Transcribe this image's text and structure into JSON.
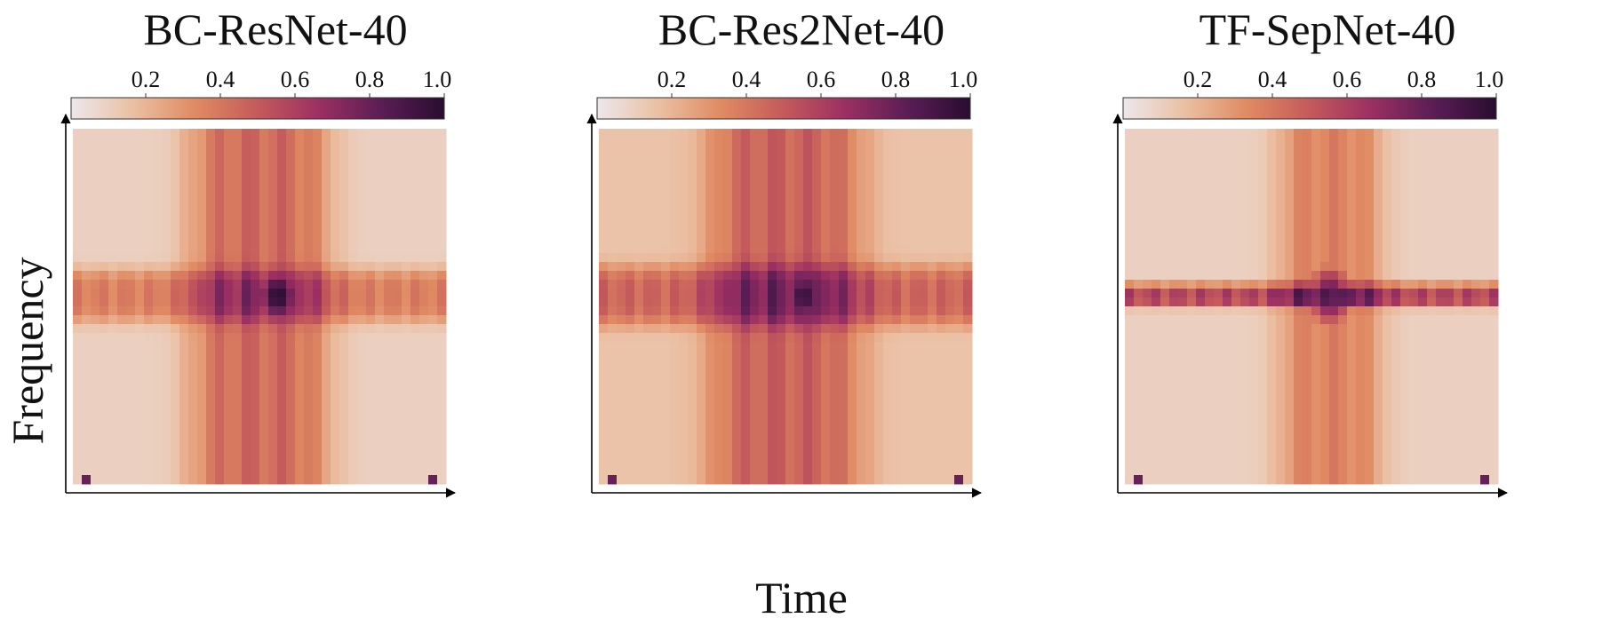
{
  "figure": {
    "ylabel": "Frequency",
    "xlabel": "Time"
  },
  "colorbar": {
    "colormap": "rocket_r",
    "range": [
      0.0,
      1.0
    ],
    "ticks": [
      "0.2",
      "0.4",
      "0.6",
      "0.8",
      "1.0"
    ],
    "tick_values": [
      0.2,
      0.4,
      0.6,
      0.8,
      1.0
    ],
    "colors": [
      "#ece7ec",
      "#ebbfa2",
      "#e08a62",
      "#c45a5b",
      "#9b2f62",
      "#5a1d55",
      "#2a0c30"
    ]
  },
  "chart_data": [
    {
      "type": "heatmap",
      "title": "BC-ResNet-40",
      "xlabel": "",
      "ylabel": "Frequency",
      "value_range": [
        0,
        1
      ],
      "pattern": "Vertical band of elevated relevance over the middle time region and horizontal band around the middle frequencies, with a strong maximum (~1.0) where they intersect; background ~0.1",
      "time_band": {
        "center": 0.5,
        "width": 0.4,
        "level": 0.4
      },
      "freq_band": {
        "center": 0.53,
        "width": 0.16,
        "level": 0.32
      },
      "peak": {
        "time": 0.55,
        "freq": 0.53,
        "level": 1.0
      }
    },
    {
      "type": "heatmap",
      "title": "BC-Res2Net-40",
      "xlabel": "Time",
      "ylabel": "",
      "value_range": [
        0,
        1
      ],
      "pattern": "Broad vertical band over the middle time region and horizontal band around the middle frequencies, with a maximum (~0.95) at the centre; background ~0.15",
      "time_band": {
        "center": 0.5,
        "width": 0.44,
        "level": 0.38
      },
      "freq_band": {
        "center": 0.53,
        "width": 0.18,
        "level": 0.36
      },
      "peak": {
        "time": 0.55,
        "freq": 0.53,
        "level": 0.95
      }
    },
    {
      "type": "heatmap",
      "title": "TF-SepNet-40",
      "xlabel": "",
      "ylabel": "",
      "value_range": [
        0,
        1
      ],
      "pattern": "Narrow sharp horizontal band at the middle frequencies and a weaker vertical band over the middle time region; maximum (~0.85) at the intersection; background ~0.1",
      "time_band": {
        "center": 0.55,
        "width": 0.3,
        "level": 0.3
      },
      "freq_band": {
        "center": 0.53,
        "width": 0.07,
        "level": 0.55
      },
      "peak": {
        "time": 0.55,
        "freq": 0.53,
        "level": 0.85
      }
    }
  ]
}
